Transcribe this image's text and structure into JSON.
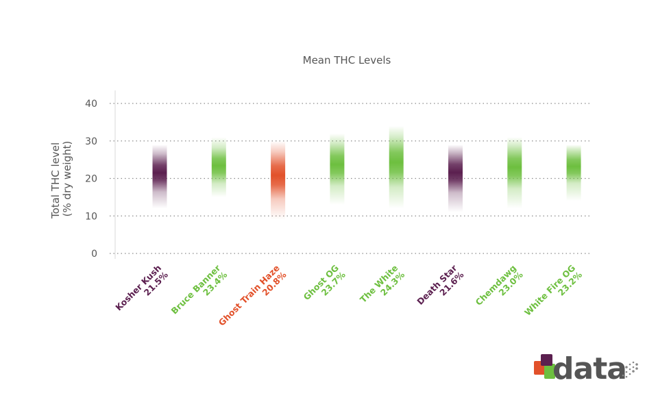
{
  "chart_data": {
    "type": "bar",
    "title": "Mean THC Levels",
    "ylabel": [
      "Total THC level",
      "(% dry weight)"
    ],
    "xlabel": "",
    "ylim": [
      0,
      40
    ],
    "yticks": [
      0,
      10,
      20,
      30,
      40
    ],
    "grid": true,
    "categories": [
      "Kosher Kush",
      "Bruce Banner",
      "Ghost Train Haze",
      "Ghost OG",
      "The White",
      "Death Star",
      "Chemdawg",
      "White Fire OG"
    ],
    "value_labels": [
      "21.5%",
      "23.4%",
      "20.8%",
      "23.7%",
      "24.3%",
      "21.6%",
      "23.0%",
      "23.2%"
    ],
    "values": [
      21.5,
      23.4,
      20.8,
      23.7,
      24.3,
      21.6,
      23.0,
      23.2
    ],
    "ranges": [
      [
        12,
        29
      ],
      [
        15,
        31
      ],
      [
        9,
        30
      ],
      [
        13,
        32
      ],
      [
        12,
        34
      ],
      [
        11,
        29
      ],
      [
        12,
        31
      ],
      [
        14,
        29
      ]
    ],
    "colors": [
      "#5b1f4f",
      "#6dbf3f",
      "#e2512a",
      "#6dbf3f",
      "#6dbf3f",
      "#5b1f4f",
      "#6dbf3f",
      "#6dbf3f"
    ]
  },
  "logo": {
    "text": "data",
    "colors": [
      "#e2512a",
      "#6dbf3f",
      "#5b1f4f"
    ]
  }
}
